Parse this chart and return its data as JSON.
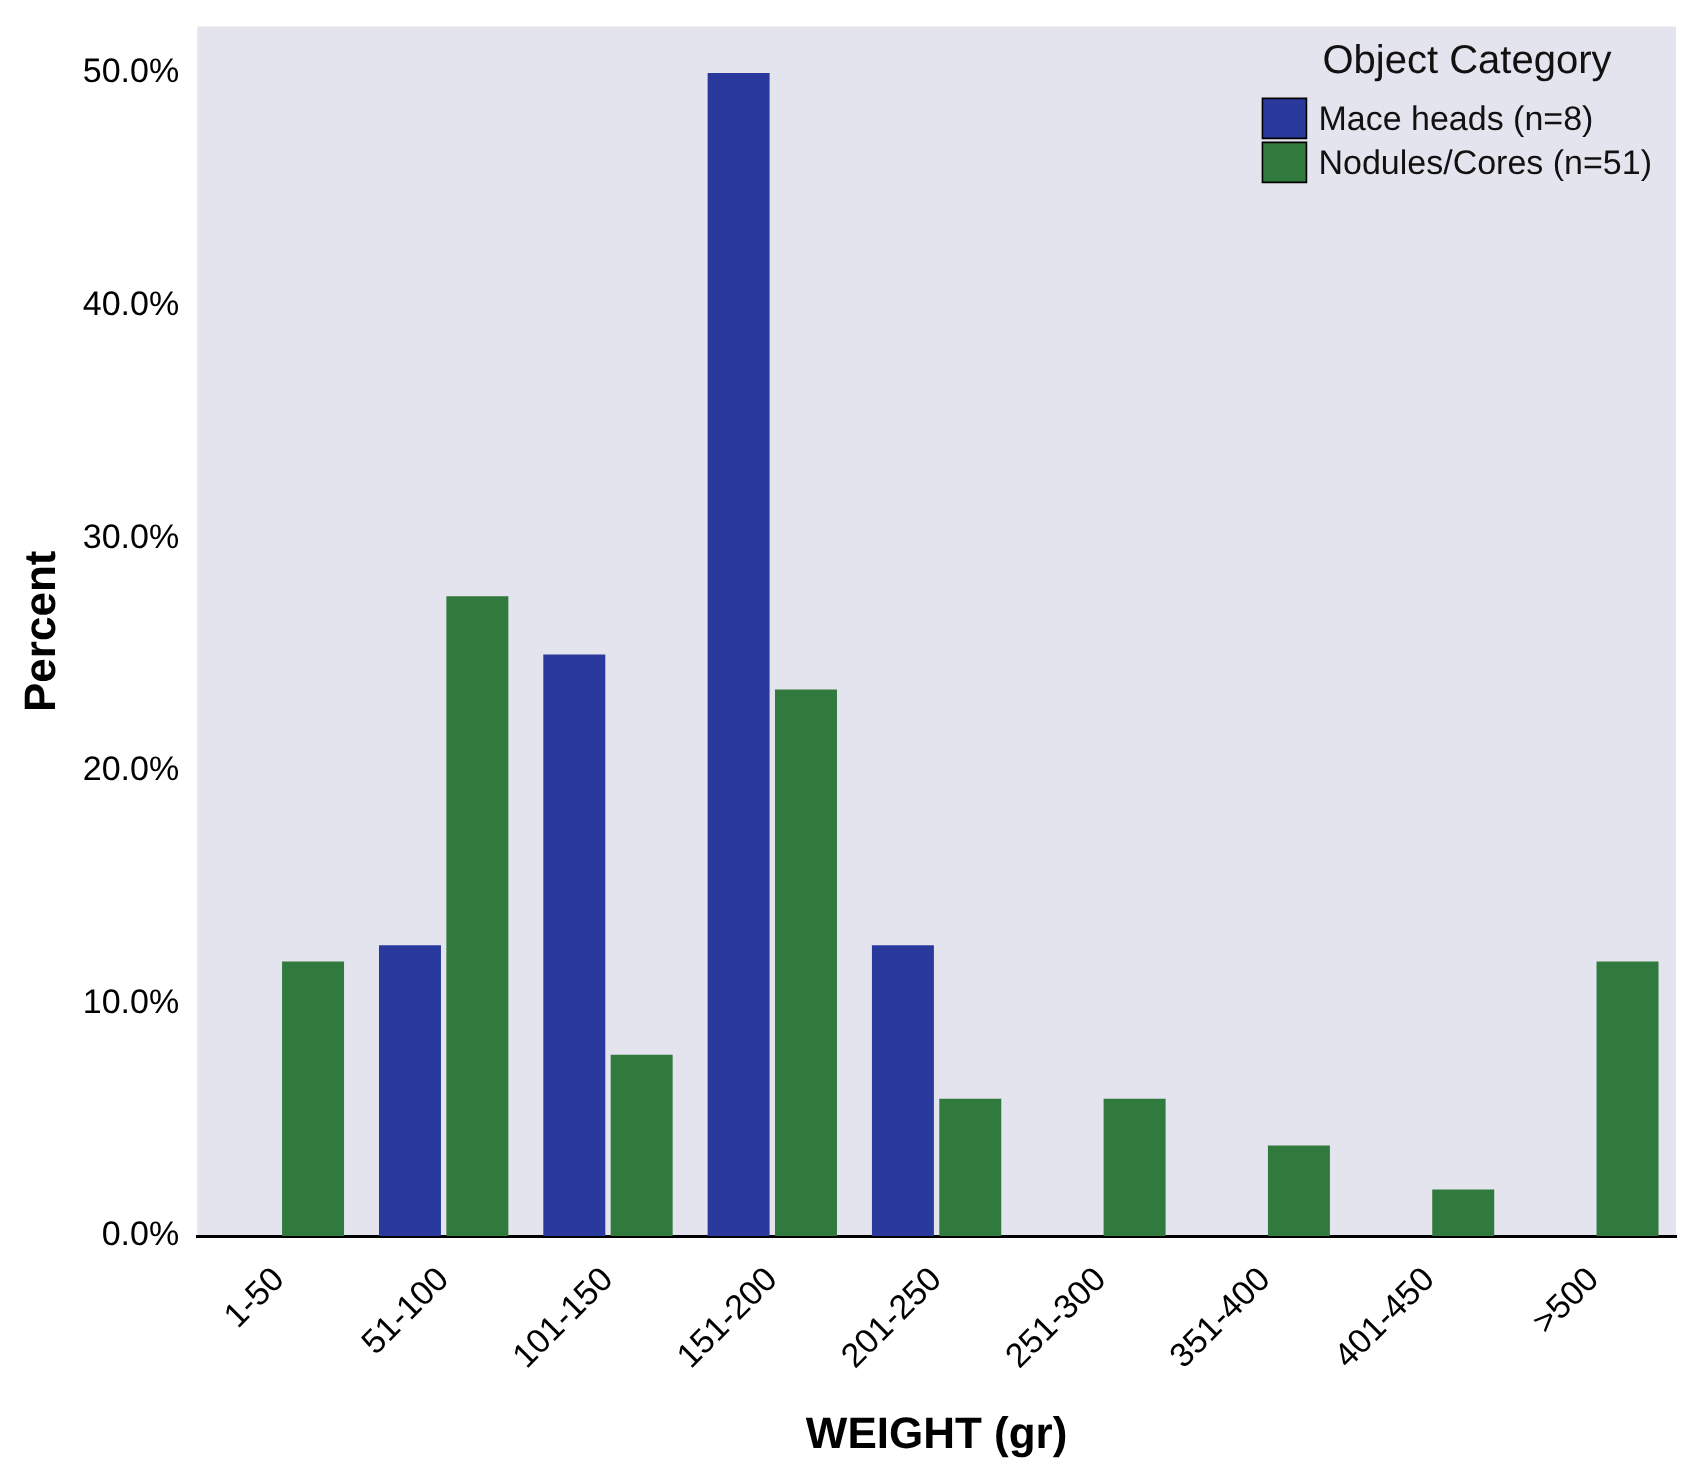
{
  "chart_data": {
    "type": "bar",
    "xlabel": "WEIGHT (gr)",
    "ylabel": "Percent",
    "legend_title": "Object Category",
    "legend": "top right",
    "grid": false,
    "categories": [
      "1-50",
      "51-100",
      "101-150",
      "151-200",
      "201-250",
      "251-300",
      "351-400",
      "401-450",
      ">500"
    ],
    "series": [
      {
        "name": "Mace heads (n=8)",
        "color": "#2a3a9c",
        "values": [
          0,
          12.5,
          25,
          50,
          12.5,
          0,
          0,
          0,
          0
        ]
      },
      {
        "name": "Nodules/Cores (n=51)",
        "color": "#2f7a3c",
        "values": [
          11.8,
          27.5,
          7.8,
          23.5,
          5.9,
          5.9,
          3.9,
          2.0,
          11.8
        ]
      }
    ],
    "ylim": [
      0,
      52
    ],
    "yticks": [
      {
        "value": 0,
        "label": "0.0%"
      },
      {
        "value": 10,
        "label": "10.0%"
      },
      {
        "value": 20,
        "label": "20.0%"
      },
      {
        "value": 30,
        "label": "30.0%"
      },
      {
        "value": 40,
        "label": "40.0%"
      },
      {
        "value": 50,
        "label": "50.0%"
      }
    ]
  }
}
